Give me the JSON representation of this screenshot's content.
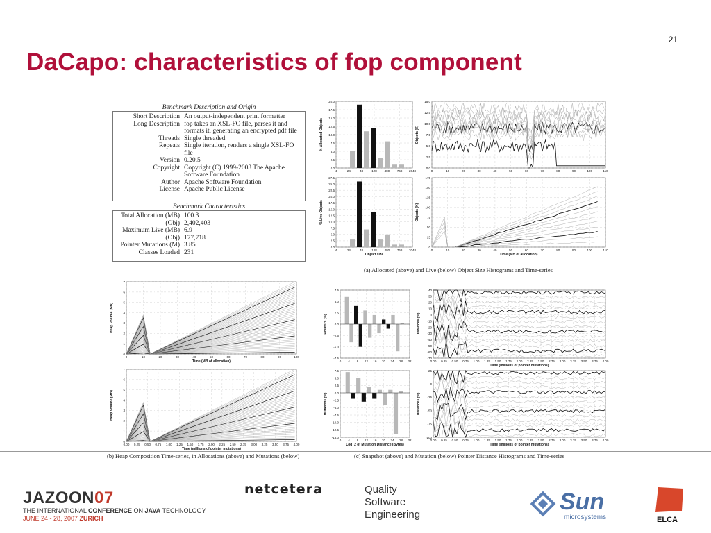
{
  "slide": {
    "page_number": "21",
    "title": "DaCapo: characteristics of fop component"
  },
  "description_table": {
    "title": "Benchmark Description and Origin",
    "rows": [
      {
        "k": "Short Description",
        "v": "An output-independent print formatter"
      },
      {
        "k": "Long Description",
        "v": "fop takes an XSL-FO file, parses it and formats it, generating an encrypted pdf file"
      },
      {
        "k": "Threads",
        "v": "Single threaded"
      },
      {
        "k": "Repeats",
        "v": "Single iteration, renders a single XSL-FO file"
      },
      {
        "k": "Version",
        "v": "0.20.5"
      },
      {
        "k": "Copyright",
        "v": "Copyright (C) 1999-2003 The Apache Software Foundation"
      },
      {
        "k": "Author",
        "v": "Apache Software Foundation"
      },
      {
        "k": "License",
        "v": "Apache Public License"
      }
    ]
  },
  "characteristics_table": {
    "title": "Benchmark Characteristics",
    "rows": [
      {
        "k": "Total Allocation (MB)",
        "v": "100.3"
      },
      {
        "k": "(Obj)",
        "v": "2,402,403"
      },
      {
        "k": "Maximum Live (MB)",
        "v": "6.9"
      },
      {
        "k": "(Obj)",
        "v": "177,718"
      },
      {
        "k": "Pointer Mutations (M)",
        "v": "3.85"
      },
      {
        "k": "Classes Loaded",
        "v": "231"
      }
    ]
  },
  "captions": {
    "a": "(a) Allocated (above) and Live (below) Object Size Histograms and Time-series",
    "b": "(b) Heap Composition Time-series, in Allocations (above) and Mutations (below)",
    "c": "(c) Snapshot (above) and Mutation (below) Pointer Distance Histograms and Time-series"
  },
  "chart_data": [
    {
      "type": "bar",
      "ylabel": "% Allocated Objects",
      "ylim": [
        0,
        20
      ],
      "yticks": [
        "0.0",
        "2.5",
        "5.0",
        "7.5",
        "10.0",
        "12.5",
        "15.0",
        "17.5",
        "20.0"
      ],
      "xticks": [
        "4",
        "24",
        "48",
        "128",
        "480",
        "768",
        "2048"
      ],
      "values": [
        0,
        5,
        19,
        11,
        12,
        3,
        8,
        1,
        1
      ],
      "dark": [
        false,
        false,
        true,
        false,
        true,
        false,
        false,
        false,
        false
      ]
    },
    {
      "type": "line",
      "ylabel": "Objects (K)",
      "xlim": [
        0,
        110
      ],
      "ylim": [
        0,
        15
      ],
      "xticks": [
        "0",
        "10",
        "20",
        "30",
        "40",
        "50",
        "60",
        "70",
        "80",
        "90",
        "100",
        "110"
      ],
      "yticks": [
        "0.0",
        "2.5",
        "5.0",
        "7.5",
        "10.0",
        "12.5",
        "15.0"
      ]
    },
    {
      "type": "bar",
      "ylabel": "% Live Objects",
      "xlabel": "Object size",
      "ylim": [
        0,
        27.5
      ],
      "yticks": [
        "0.0",
        "2.5",
        "5.0",
        "7.5",
        "10.0",
        "12.5",
        "15.0",
        "17.5",
        "20.0",
        "22.5",
        "25.0",
        "27.5"
      ],
      "xticks": [
        "4",
        "24",
        "48",
        "128",
        "480",
        "768",
        "2048"
      ],
      "values": [
        0,
        3,
        26,
        7,
        14,
        3,
        5,
        1,
        1
      ],
      "dark": [
        false,
        false,
        true,
        false,
        true,
        false,
        false,
        false,
        false
      ]
    },
    {
      "type": "line",
      "ylabel": "Objects (K)",
      "xlabel": "Time (MB of allocation)",
      "xlim": [
        0,
        110
      ],
      "ylim": [
        0,
        175
      ],
      "xticks": [
        "0",
        "10",
        "20",
        "30",
        "40",
        "50",
        "60",
        "70",
        "80",
        "90",
        "100",
        "110"
      ],
      "yticks": [
        "0",
        "25",
        "50",
        "75",
        "100",
        "125",
        "150",
        "175"
      ]
    },
    {
      "type": "area",
      "ylabel": "Heap Volume (MB)",
      "xlabel": "Time (MB of allocation)",
      "xlim": [
        0,
        100
      ],
      "ylim": [
        0,
        7
      ],
      "xticks": [
        "0",
        "10",
        "20",
        "30",
        "40",
        "50",
        "60",
        "70",
        "80",
        "90",
        "100"
      ],
      "yticks": [
        "0",
        "1",
        "2",
        "3",
        "4",
        "5",
        "6",
        "7"
      ]
    },
    {
      "type": "area",
      "ylabel": "Heap Volume (MB)",
      "xlabel": "Time (millions of pointer mutations)",
      "xlim": [
        0,
        4
      ],
      "ylim": [
        0,
        7
      ],
      "xticks": [
        "0.00",
        "0.25",
        "0.50",
        "0.75",
        "1.00",
        "1.25",
        "1.50",
        "1.75",
        "2.00",
        "2.25",
        "2.50",
        "2.75",
        "3.00",
        "3.25",
        "3.50",
        "3.75",
        "4.00"
      ],
      "yticks": [
        "0",
        "1",
        "2",
        "3",
        "4",
        "5",
        "6",
        "7"
      ]
    },
    {
      "type": "bar",
      "ylabel": "Pointers (%)",
      "ylim": [
        -7.5,
        7.5
      ],
      "yticks": [
        "7.5",
        "5.0",
        "2.5",
        "0.0",
        "-2.5",
        "-5.0",
        "-7.5"
      ],
      "xticks": [
        "0",
        "4",
        "8",
        "12",
        "16",
        "20",
        "24",
        "28",
        "32"
      ],
      "values": [
        6,
        -4,
        4,
        -5,
        3,
        -3,
        2,
        -2,
        1,
        -1,
        2,
        -6,
        0.3
      ],
      "dark": [
        false,
        false,
        true,
        true,
        false,
        false,
        false,
        false,
        true,
        true,
        false,
        false,
        false
      ]
    },
    {
      "type": "line",
      "ylabel": "Distances (%)",
      "xlabel": "Time (millions of pointer mutations)",
      "xlim": [
        0,
        4
      ],
      "ylim": [
        -70,
        40
      ],
      "xticks": [
        "0.00",
        "0.25",
        "0.50",
        "0.75",
        "1.00",
        "1.25",
        "1.50",
        "1.75",
        "2.00",
        "2.25",
        "2.50",
        "2.75",
        "3.00",
        "3.25",
        "3.50",
        "3.75",
        "4.00"
      ],
      "yticks": [
        "40",
        "30",
        "20",
        "10",
        "0",
        "-10",
        "-20",
        "-30",
        "-40",
        "-50",
        "-60",
        "-70"
      ]
    },
    {
      "type": "bar",
      "ylabel": "Mutations (%)",
      "xlabel": "Log_2 of Mutation Distance (Bytes)",
      "ylim": [
        -15,
        7.5
      ],
      "yticks": [
        "7.5",
        "5.0",
        "2.5",
        "0.0",
        "-2.5",
        "-5.0",
        "-7.5",
        "-10.0",
        "-12.5",
        "-15.0"
      ],
      "xticks": [
        "0",
        "4",
        "8",
        "12",
        "16",
        "20",
        "24",
        "28",
        "32"
      ],
      "values": [
        7,
        -2,
        5,
        -3,
        2,
        -2,
        1,
        -4,
        1,
        -14,
        0.5
      ],
      "dark": [
        false,
        true,
        false,
        true,
        false,
        true,
        false,
        false,
        false,
        false,
        false
      ]
    },
    {
      "type": "line",
      "ylabel": "Distances (%)",
      "xlabel": "Time (millions of pointer mutations)",
      "xlim": [
        0,
        4
      ],
      "ylim": [
        -100,
        25
      ],
      "xticks": [
        "0.00",
        "0.25",
        "0.50",
        "0.75",
        "1.00",
        "1.25",
        "1.50",
        "1.75",
        "2.00",
        "2.25",
        "2.50",
        "2.75",
        "3.00",
        "3.25",
        "3.50",
        "3.75",
        "4.00"
      ],
      "yticks": [
        "25",
        "0",
        "-25",
        "-50",
        "-75",
        "-100"
      ]
    }
  ],
  "footer": {
    "jazoon_logo": "JAZOON",
    "jazoon_year": "07",
    "jazoon_line1_a": "THE INTERNATIONAL ",
    "jazoon_line1_b": "CONFERENCE",
    "jazoon_line1_c": " ON ",
    "jazoon_line1_d": "JAVA",
    "jazoon_line1_e": " TECHNOLOGY",
    "jazoon_line2_a": "JUNE 24 - 28, 2007 ",
    "jazoon_line2_b": "ZURICH",
    "netcetera_logo": "netcetera",
    "tagline": [
      "Quality",
      "Software",
      "Engineering"
    ],
    "sun_logo": "Sun",
    "sun_sub": "microsystems",
    "elca_logo": "ELCA"
  }
}
